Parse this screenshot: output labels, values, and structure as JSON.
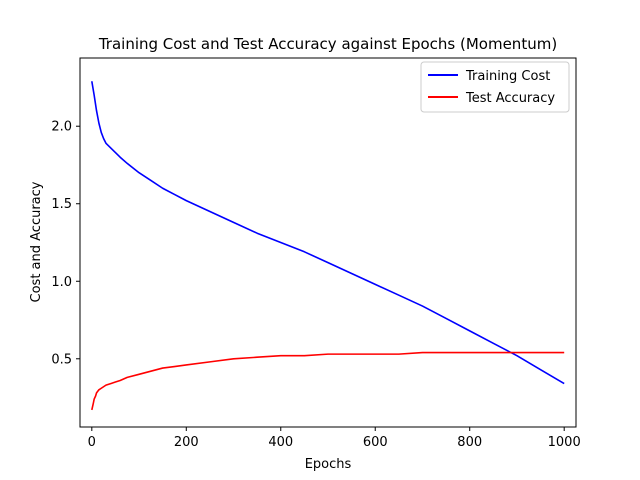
{
  "chart_data": {
    "type": "line",
    "title": "Training Cost and Test Accuracy against Epochs (Momentum)",
    "xlabel": "Epochs",
    "ylabel": "Cost and Accuracy",
    "xlim": [
      -25,
      1025
    ],
    "ylim": [
      0.06,
      2.44
    ],
    "xticks": [
      0,
      200,
      400,
      600,
      800,
      1000
    ],
    "yticks": [
      0.5,
      1.0,
      1.5,
      2.0
    ],
    "xtick_labels": [
      "0",
      "200",
      "400",
      "600",
      "800",
      "1000"
    ],
    "ytick_labels": [
      "0.5",
      "1.0",
      "1.5",
      "2.0"
    ],
    "grid": false,
    "legend_position": "top-right",
    "series": [
      {
        "name": "Training Cost",
        "color": "#0000ff",
        "x": [
          0,
          5,
          10,
          15,
          20,
          25,
          30,
          40,
          50,
          60,
          75,
          100,
          125,
          150,
          175,
          200,
          250,
          300,
          350,
          400,
          450,
          500,
          550,
          600,
          650,
          700,
          750,
          800,
          850,
          900,
          950,
          1000
        ],
        "y": [
          2.29,
          2.2,
          2.1,
          2.02,
          1.96,
          1.92,
          1.89,
          1.86,
          1.83,
          1.8,
          1.76,
          1.7,
          1.65,
          1.6,
          1.56,
          1.52,
          1.45,
          1.38,
          1.31,
          1.25,
          1.19,
          1.12,
          1.05,
          0.98,
          0.91,
          0.84,
          0.76,
          0.68,
          0.6,
          0.52,
          0.43,
          0.34
        ]
      },
      {
        "name": "Test Accuracy",
        "color": "#ff0000",
        "x": [
          0,
          3,
          5,
          8,
          10,
          15,
          20,
          30,
          40,
          50,
          60,
          75,
          100,
          125,
          150,
          175,
          200,
          250,
          300,
          350,
          400,
          450,
          500,
          550,
          600,
          650,
          700,
          750,
          800,
          850,
          900,
          950,
          1000
        ],
        "y": [
          0.17,
          0.21,
          0.24,
          0.26,
          0.28,
          0.3,
          0.31,
          0.33,
          0.34,
          0.35,
          0.36,
          0.38,
          0.4,
          0.42,
          0.44,
          0.45,
          0.46,
          0.48,
          0.5,
          0.51,
          0.52,
          0.52,
          0.53,
          0.53,
          0.53,
          0.53,
          0.54,
          0.54,
          0.54,
          0.54,
          0.54,
          0.54,
          0.54
        ]
      }
    ]
  }
}
